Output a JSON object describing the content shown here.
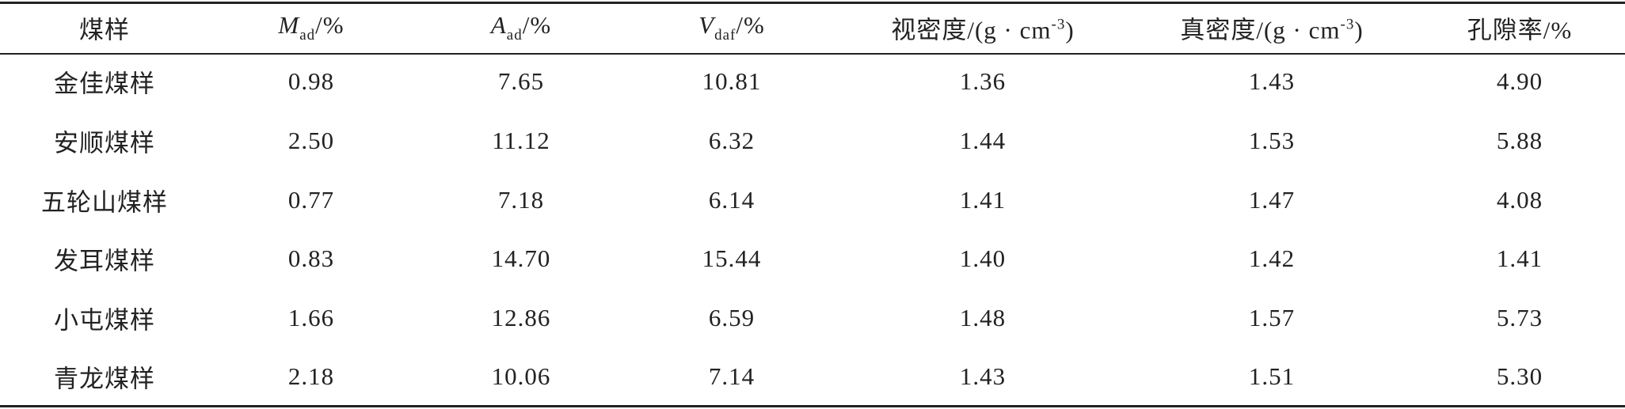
{
  "table": {
    "header": [
      [
        {
          "text": "煤样"
        }
      ],
      [
        {
          "text": "M",
          "style": "italic"
        },
        {
          "text": "ad",
          "style": "sub"
        },
        {
          "text": "/%"
        }
      ],
      [
        {
          "text": "A",
          "style": "italic"
        },
        {
          "text": "ad",
          "style": "sub"
        },
        {
          "text": "/%"
        }
      ],
      [
        {
          "text": "V",
          "style": "italic"
        },
        {
          "text": "daf",
          "style": "sub"
        },
        {
          "text": "/%"
        }
      ],
      [
        {
          "text": "视密度/(g · cm"
        },
        {
          "text": "-3",
          "style": "sup"
        },
        {
          "text": ")"
        }
      ],
      [
        {
          "text": "真密度/(g · cm"
        },
        {
          "text": "-3",
          "style": "sup"
        },
        {
          "text": ")"
        }
      ],
      [
        {
          "text": "孔隙率/%"
        }
      ]
    ],
    "rows": [
      [
        "金佳煤样",
        "0.98",
        "7.65",
        "10.81",
        "1.36",
        "1.43",
        "4.90"
      ],
      [
        "安顺煤样",
        "2.50",
        "11.12",
        "6.32",
        "1.44",
        "1.53",
        "5.88"
      ],
      [
        "五轮山煤样",
        "0.77",
        "7.18",
        "6.14",
        "1.41",
        "1.47",
        "4.08"
      ],
      [
        "发耳煤样",
        "0.83",
        "14.70",
        "15.44",
        "1.40",
        "1.42",
        "1.41"
      ],
      [
        "小屯煤样",
        "1.66",
        "12.86",
        "6.59",
        "1.48",
        "1.57",
        "5.73"
      ],
      [
        "青龙煤样",
        "2.18",
        "10.06",
        "7.14",
        "1.43",
        "1.51",
        "5.30"
      ]
    ]
  }
}
